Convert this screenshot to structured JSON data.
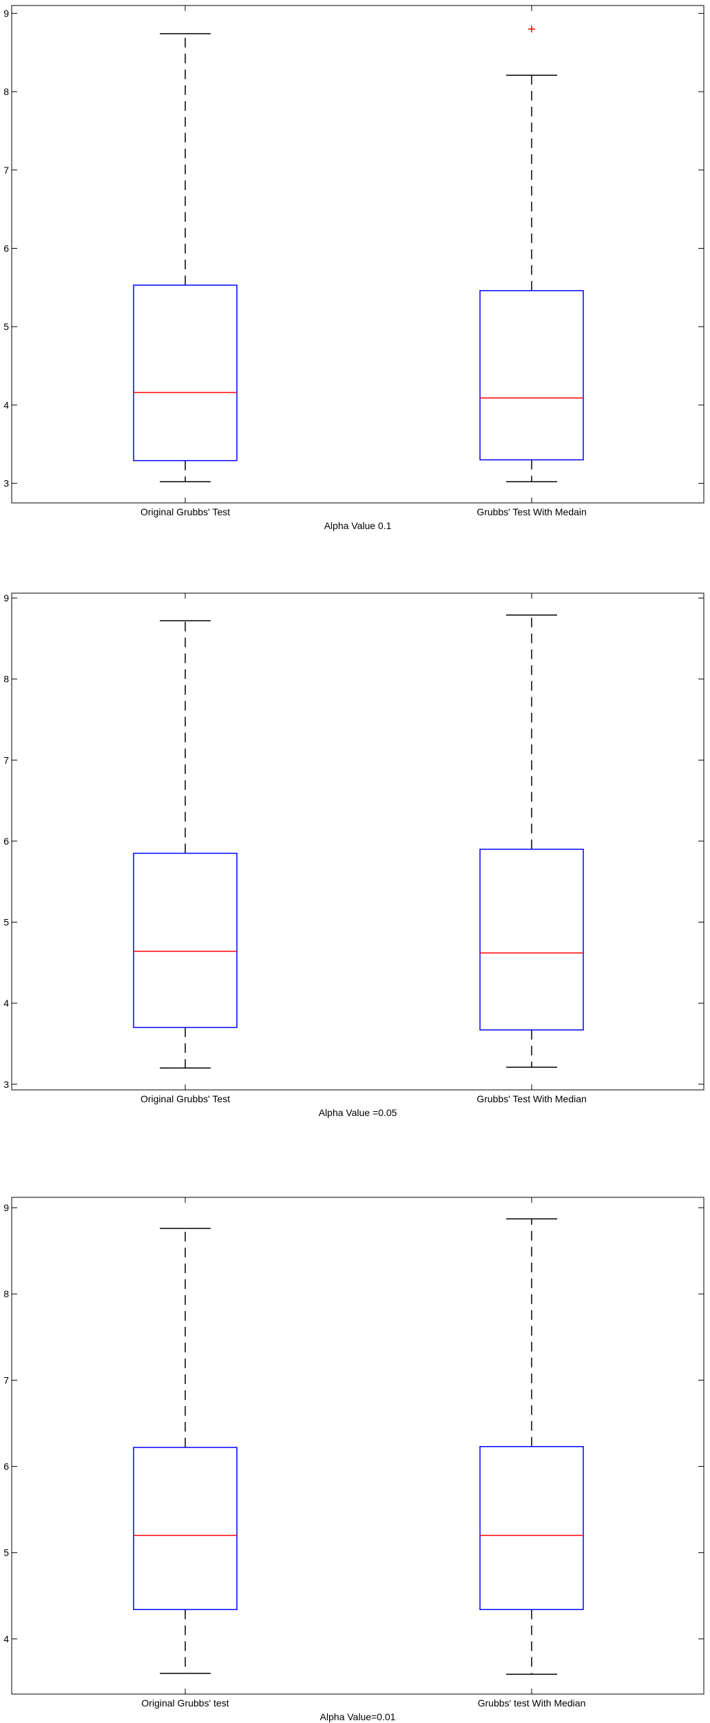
{
  "colors": {
    "box": "#0000ff",
    "median": "#ff0000",
    "whisker": "#000000",
    "outlier": "#ff0000",
    "axes": "#000000"
  },
  "chart_data": [
    {
      "type": "box",
      "title": "",
      "xlabel": "Alpha Value 0.1",
      "ylabel": "",
      "ylim": [
        2.75,
        9.1
      ],
      "yticks": [
        3,
        4,
        5,
        6,
        7,
        8,
        9
      ],
      "grid": false,
      "categories": [
        "Original Grubbs' Test",
        "Grubbs' Test With Medain"
      ],
      "boxes": [
        {
          "category": "Original Grubbs' Test",
          "min": 3.02,
          "q1": 3.29,
          "median": 4.16,
          "q3": 5.53,
          "max": 8.74,
          "outliers": []
        },
        {
          "category": "Grubbs' Test With Medain",
          "min": 3.02,
          "q1": 3.3,
          "median": 4.09,
          "q3": 5.46,
          "max": 8.21,
          "outliers": [
            8.8
          ]
        }
      ]
    },
    {
      "type": "box",
      "title": "",
      "xlabel": "Alpha Value =0.05",
      "ylabel": "",
      "ylim": [
        2.93,
        9.06
      ],
      "yticks": [
        3,
        4,
        5,
        6,
        7,
        8,
        9
      ],
      "grid": false,
      "categories": [
        "Original Grubbs' Test",
        "Grubbs' Test With Median"
      ],
      "boxes": [
        {
          "category": "Original Grubbs' Test",
          "min": 3.2,
          "q1": 3.7,
          "median": 4.64,
          "q3": 5.85,
          "max": 8.72,
          "outliers": []
        },
        {
          "category": "Grubbs' Test With Median",
          "min": 3.21,
          "q1": 3.67,
          "median": 4.62,
          "q3": 5.9,
          "max": 8.79,
          "outliers": []
        }
      ]
    },
    {
      "type": "box",
      "title": "",
      "xlabel": "Alpha Value=0.01",
      "ylabel": "",
      "ylim": [
        3.36,
        9.12
      ],
      "yticks": [
        4,
        5,
        6,
        7,
        8,
        9
      ],
      "grid": false,
      "categories": [
        "Original Grubbs' test",
        "Grubbs' test With Median"
      ],
      "boxes": [
        {
          "category": "Original Grubbs' test",
          "min": 3.6,
          "q1": 4.34,
          "median": 5.2,
          "q3": 6.22,
          "max": 8.76,
          "outliers": []
        },
        {
          "category": "Grubbs' test With Median",
          "min": 3.59,
          "q1": 4.34,
          "median": 5.2,
          "q3": 6.23,
          "max": 8.87,
          "outliers": []
        }
      ]
    }
  ]
}
